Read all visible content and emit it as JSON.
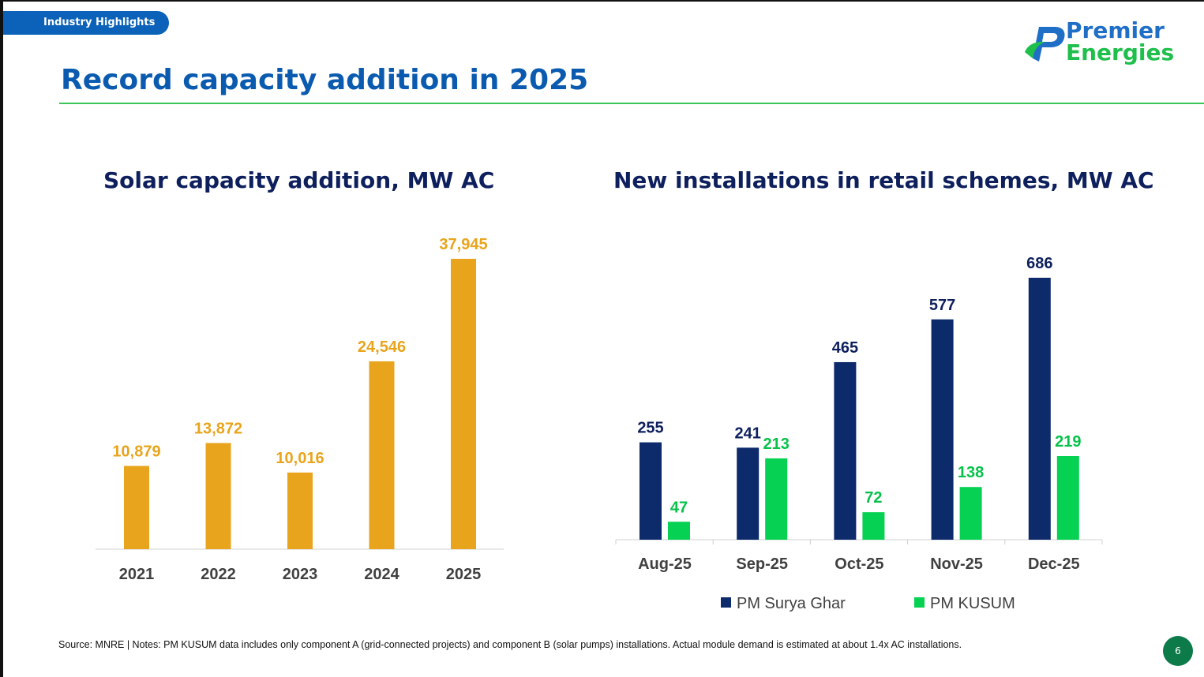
{
  "header": {
    "badge": "Industry Highlights",
    "title": "Record capacity addition in 2025"
  },
  "logo": {
    "line1": "Premier",
    "line2": "Energies"
  },
  "colors": {
    "accent": "#0a5bb0",
    "rule": "#3cc35a",
    "bar_orange": "#e8a41c",
    "navy": "#0d2a6b",
    "green": "#06d152"
  },
  "chart_data": [
    {
      "type": "bar",
      "title": "Solar capacity addition, MW AC",
      "categories": [
        "2021",
        "2022",
        "2023",
        "2024",
        "2025"
      ],
      "values": [
        10879,
        13872,
        10016,
        24546,
        37945
      ],
      "value_labels": [
        "10,879",
        "13,872",
        "10,016",
        "24,546",
        "37,945"
      ],
      "ylim": [
        0,
        40000
      ],
      "grid": false,
      "legend": false
    },
    {
      "type": "bar",
      "title": "New installations in retail schemes, MW AC",
      "categories": [
        "Aug-25",
        "Sep-25",
        "Oct-25",
        "Nov-25",
        "Dec-25"
      ],
      "series": [
        {
          "name": "PM Surya Ghar",
          "values": [
            255,
            241,
            465,
            577,
            686
          ]
        },
        {
          "name": "PM KUSUM",
          "values": [
            47,
            213,
            72,
            138,
            219
          ]
        }
      ],
      "ylim": [
        0,
        700
      ],
      "grid": false,
      "legend": "bottom"
    }
  ],
  "footnote": "Source: MNRE | Notes: PM KUSUM data includes only component A (grid-connected projects) and component B (solar pumps) installations. Actual module demand is estimated at about 1.4x AC installations.",
  "page_number": "6"
}
